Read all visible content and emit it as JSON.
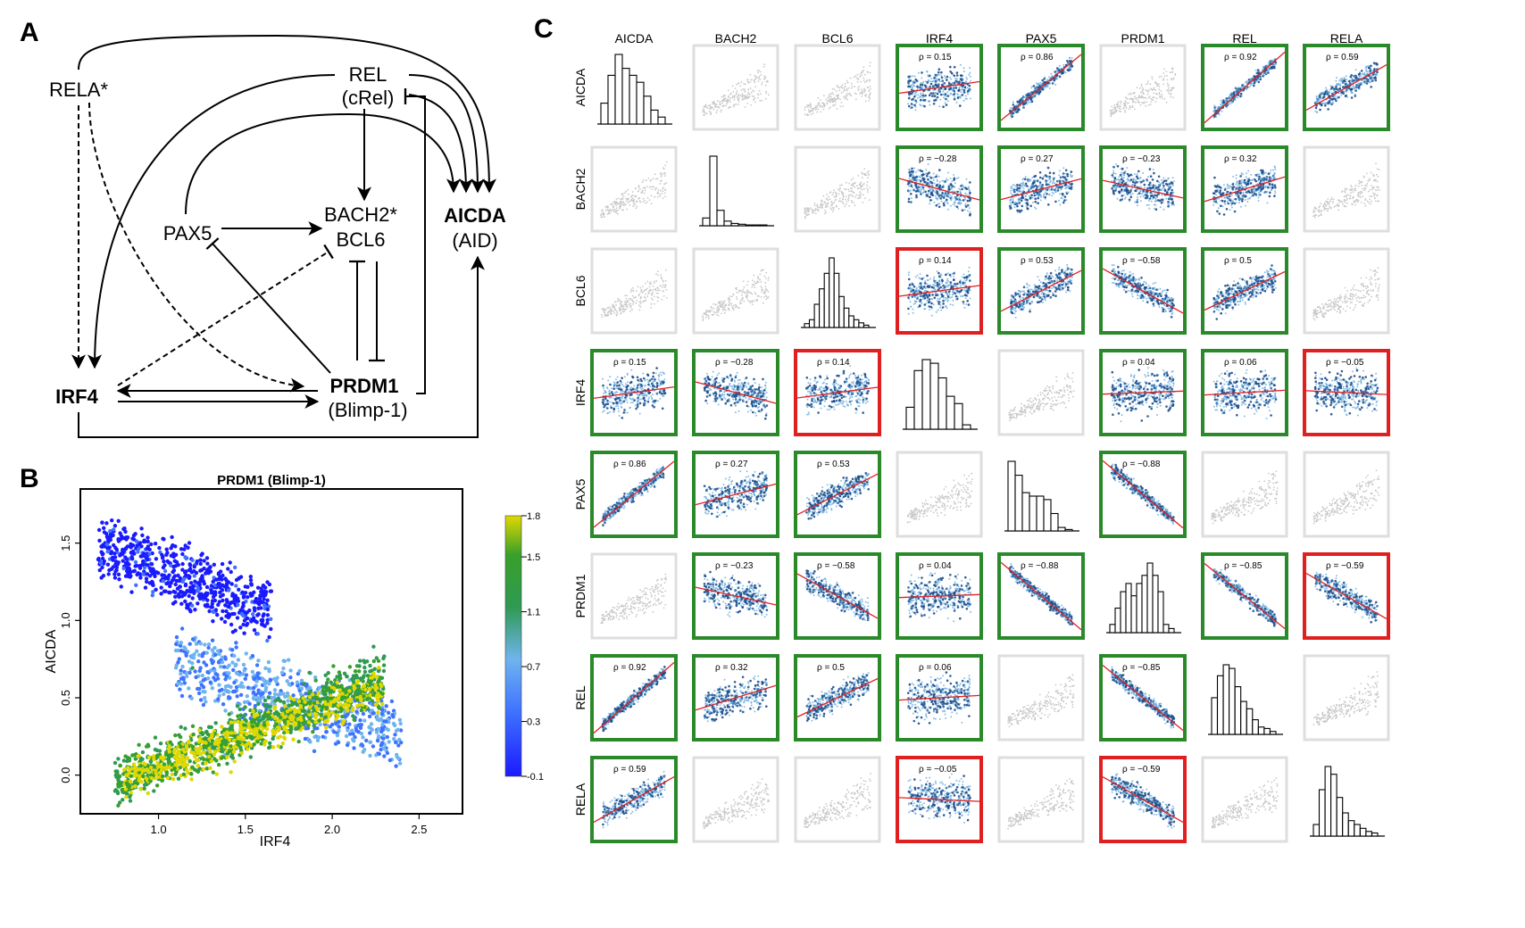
{
  "panel_letters": {
    "a": "A",
    "b": "B",
    "c": "C"
  },
  "network": {
    "nodes": {
      "rela": "RELA*",
      "rel": "REL",
      "rel_alt": "(cRel)",
      "bach2": "BACH2*",
      "bcl6": "BCL6",
      "pax5": "PAX5",
      "aicda": "AICDA",
      "aicda_alt": "(AID)",
      "irf4": "IRF4",
      "prdm1": "PRDM1",
      "prdm1_alt": "(Blimp-1)"
    }
  },
  "chart_data": [
    {
      "type": "scatter",
      "title": "PRDM1 (Blimp-1)",
      "xlabel": "IRF4",
      "ylabel": "AICDA",
      "xlim": [
        0.55,
        2.75
      ],
      "ylim": [
        -0.25,
        1.85
      ],
      "xticks": [
        "1.0",
        "1.5",
        "2.0",
        "2.5"
      ],
      "yticks": [
        "0.0",
        "0.5",
        "1.0",
        "1.5"
      ],
      "colorbar": {
        "ticks": [
          "-0.1",
          "0.3",
          "0.7",
          "1.1",
          "1.5",
          "1.8"
        ],
        "colors": [
          "#1a1aff",
          "#3f73ff",
          "#6fb4ee",
          "#2e9a52",
          "#39a02a",
          "#e0d800"
        ]
      },
      "clusters": [
        {
          "level": 0.0,
          "x_range": [
            0.65,
            1.65
          ],
          "y_start": [
            1.35,
            1.65
          ],
          "slope": -0.45
        },
        {
          "level": 0.55,
          "x_range": [
            1.1,
            2.4
          ],
          "y_start": [
            0.55,
            0.9
          ],
          "slope": -0.35
        },
        {
          "level": 1.2,
          "x_range": [
            0.75,
            2.3
          ],
          "y_start": [
            -0.15,
            0.05
          ],
          "slope": 0.45
        },
        {
          "level": 1.7,
          "x_range": [
            0.8,
            2.3
          ],
          "y_start": [
            -0.1,
            0.05
          ],
          "slope": 0.4
        }
      ]
    },
    {
      "type": "scatter",
      "genes": [
        "AICDA",
        "BACH2",
        "BCL6",
        "IRF4",
        "PAX5",
        "PRDM1",
        "REL",
        "RELA"
      ],
      "rho_prefix": "ρ = ",
      "frame_colors": {
        "positive": "#2a8a2a",
        "negative": "#e02020",
        "none": "#dedede"
      },
      "pairs": [
        {
          "a": "AICDA",
          "b": "IRF4",
          "rho": "0.15",
          "frame": "positive"
        },
        {
          "a": "AICDA",
          "b": "PAX5",
          "rho": "0.86",
          "frame": "positive"
        },
        {
          "a": "AICDA",
          "b": "REL",
          "rho": "0.92",
          "frame": "positive"
        },
        {
          "a": "AICDA",
          "b": "RELA",
          "rho": "0.59",
          "frame": "positive"
        },
        {
          "a": "BACH2",
          "b": "IRF4",
          "rho": "−0.28",
          "frame": "positive"
        },
        {
          "a": "BACH2",
          "b": "PAX5",
          "rho": "0.27",
          "frame": "positive"
        },
        {
          "a": "BACH2",
          "b": "PRDM1",
          "rho": "−0.23",
          "frame": "positive"
        },
        {
          "a": "BACH2",
          "b": "REL",
          "rho": "0.32",
          "frame": "positive"
        },
        {
          "a": "BCL6",
          "b": "IRF4",
          "rho": "0.14",
          "frame": "negative"
        },
        {
          "a": "BCL6",
          "b": "PAX5",
          "rho": "0.53",
          "frame": "positive"
        },
        {
          "a": "BCL6",
          "b": "PRDM1",
          "rho": "−0.58",
          "frame": "positive"
        },
        {
          "a": "BCL6",
          "b": "REL",
          "rho": "0.5",
          "frame": "positive"
        },
        {
          "a": "IRF4",
          "b": "PRDM1",
          "rho": "0.04",
          "frame": "positive"
        },
        {
          "a": "IRF4",
          "b": "REL",
          "rho": "0.06",
          "frame": "positive"
        },
        {
          "a": "IRF4",
          "b": "RELA",
          "rho": "−0.05",
          "frame": "negative"
        },
        {
          "a": "PAX5",
          "b": "PRDM1",
          "rho": "−0.88",
          "frame": "positive"
        },
        {
          "a": "PRDM1",
          "b": "REL",
          "rho": "−0.85",
          "frame": "positive"
        },
        {
          "a": "PRDM1",
          "b": "RELA",
          "rho": "−0.59",
          "frame": "negative"
        }
      ],
      "histograms": [
        [
          3,
          7,
          10,
          8,
          7,
          6,
          4,
          2,
          1
        ],
        [
          1,
          9,
          2,
          0.6,
          0.3,
          0.2,
          0.1,
          0.1,
          0.1
        ],
        [
          0.5,
          1,
          3,
          5,
          7,
          9,
          7,
          4,
          2.5,
          1.5,
          1,
          0.6,
          0.3
        ],
        [
          3,
          8,
          9.5,
          9,
          7,
          4.5,
          3.5,
          0.6
        ],
        [
          10,
          8,
          5.5,
          5,
          5,
          4.5,
          2.5,
          0.5,
          0.2
        ],
        [
          1,
          3,
          5,
          6,
          4.5,
          6,
          7,
          8.5,
          7,
          5,
          1,
          0.5
        ],
        [
          5,
          8,
          9.5,
          9,
          6.5,
          4.5,
          3.5,
          2,
          1,
          0.8,
          0.4
        ],
        [
          1.5,
          6,
          9,
          8,
          5,
          3,
          2,
          1.5,
          1,
          0.6,
          0.4
        ]
      ]
    }
  ]
}
